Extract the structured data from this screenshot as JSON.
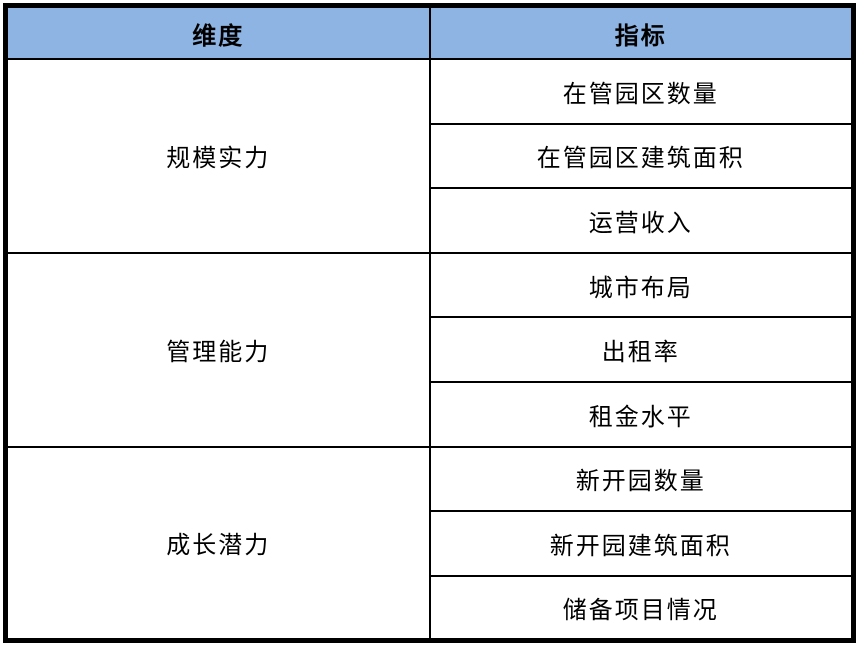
{
  "table": {
    "columns": [
      {
        "label": "维度"
      },
      {
        "label": "指标"
      }
    ],
    "groups": [
      {
        "dimension": "规模实力",
        "indicators": [
          "在管园区数量",
          "在管园区建筑面积",
          "运营收入"
        ]
      },
      {
        "dimension": "管理能力",
        "indicators": [
          "城市布局",
          "出租率",
          "租金水平"
        ]
      },
      {
        "dimension": "成长潜力",
        "indicators": [
          "新开园数量",
          "新开园建筑面积",
          "储备项目情况"
        ]
      }
    ],
    "colors": {
      "header_bg": "#8DB4E2",
      "border": "#000000",
      "text": "#000000",
      "page_bg": "#FFFFFF"
    }
  }
}
